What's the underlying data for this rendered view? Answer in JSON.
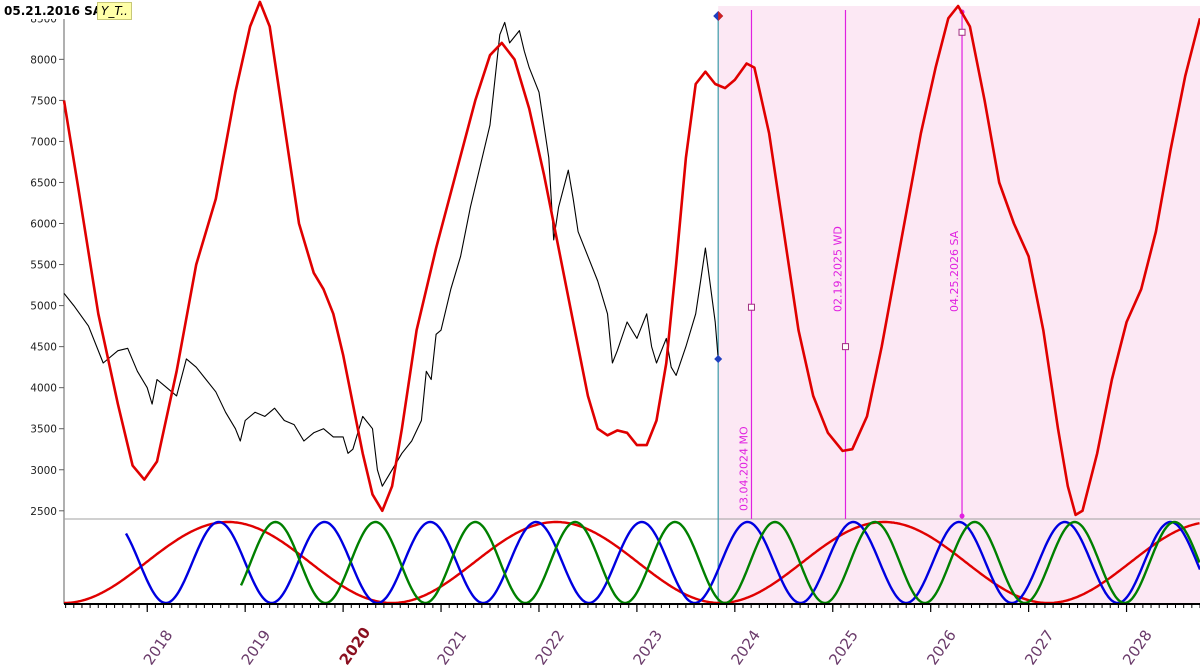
{
  "header": {
    "date_label": "05.21.2016 SA",
    "tag_label": "Y_T.."
  },
  "colors": {
    "price": "#000000",
    "composite_cycle": "#e00000",
    "cycle_red": "#e00000",
    "cycle_blue": "#0000e0",
    "cycle_green": "#008000",
    "projection_bg": "#fce8f4",
    "marker": "#e020e0",
    "now_line": "#3a9aa8"
  },
  "chart_data": {
    "type": "line",
    "x_unit": "year",
    "xlim": [
      2017.15,
      2028.75
    ],
    "ylim": [
      2400,
      8650
    ],
    "y_ticks": [
      "2500",
      "3000",
      "3500",
      "4000",
      "4500",
      "5000",
      "5500",
      "6000",
      "6500",
      "7000",
      "7500",
      "8000",
      "8500"
    ],
    "x_ticks": [
      "2018",
      "2019",
      "2020",
      "2021",
      "2022",
      "2023",
      "2024",
      "2025",
      "2026",
      "2027",
      "2028"
    ],
    "x_tick_highlight": "2020",
    "now_x": 2023.83,
    "series": [
      {
        "role": "price",
        "color": "#000000",
        "points": [
          [
            2017.15,
            5150
          ],
          [
            2017.25,
            5000
          ],
          [
            2017.4,
            4750
          ],
          [
            2017.55,
            4300
          ],
          [
            2017.7,
            4450
          ],
          [
            2017.8,
            4480
          ],
          [
            2017.9,
            4200
          ],
          [
            2018.0,
            4000
          ],
          [
            2018.05,
            3800
          ],
          [
            2018.1,
            4100
          ],
          [
            2018.2,
            4000
          ],
          [
            2018.3,
            3900
          ],
          [
            2018.4,
            4350
          ],
          [
            2018.5,
            4250
          ],
          [
            2018.6,
            4100
          ],
          [
            2018.7,
            3950
          ],
          [
            2018.8,
            3700
          ],
          [
            2018.9,
            3500
          ],
          [
            2018.95,
            3350
          ],
          [
            2019.0,
            3600
          ],
          [
            2019.1,
            3700
          ],
          [
            2019.2,
            3650
          ],
          [
            2019.3,
            3750
          ],
          [
            2019.4,
            3600
          ],
          [
            2019.5,
            3550
          ],
          [
            2019.6,
            3350
          ],
          [
            2019.7,
            3450
          ],
          [
            2019.8,
            3500
          ],
          [
            2019.9,
            3400
          ],
          [
            2020.0,
            3400
          ],
          [
            2020.05,
            3200
          ],
          [
            2020.1,
            3250
          ],
          [
            2020.2,
            3650
          ],
          [
            2020.3,
            3500
          ],
          [
            2020.35,
            3000
          ],
          [
            2020.4,
            2800
          ],
          [
            2020.5,
            3000
          ],
          [
            2020.6,
            3200
          ],
          [
            2020.7,
            3350
          ],
          [
            2020.8,
            3600
          ],
          [
            2020.85,
            4200
          ],
          [
            2020.9,
            4100
          ],
          [
            2020.95,
            4650
          ],
          [
            2021.0,
            4700
          ],
          [
            2021.1,
            5200
          ],
          [
            2021.2,
            5600
          ],
          [
            2021.3,
            6200
          ],
          [
            2021.4,
            6700
          ],
          [
            2021.5,
            7200
          ],
          [
            2021.55,
            7750
          ],
          [
            2021.6,
            8300
          ],
          [
            2021.65,
            8450
          ],
          [
            2021.7,
            8200
          ],
          [
            2021.8,
            8350
          ],
          [
            2021.85,
            8100
          ],
          [
            2021.9,
            7900
          ],
          [
            2022.0,
            7600
          ],
          [
            2022.05,
            7200
          ],
          [
            2022.1,
            6800
          ],
          [
            2022.15,
            5800
          ],
          [
            2022.2,
            6200
          ],
          [
            2022.3,
            6650
          ],
          [
            2022.35,
            6300
          ],
          [
            2022.4,
            5900
          ],
          [
            2022.5,
            5600
          ],
          [
            2022.6,
            5300
          ],
          [
            2022.7,
            4900
          ],
          [
            2022.75,
            4300
          ],
          [
            2022.8,
            4450
          ],
          [
            2022.9,
            4800
          ],
          [
            2023.0,
            4600
          ],
          [
            2023.1,
            4900
          ],
          [
            2023.15,
            4500
          ],
          [
            2023.2,
            4300
          ],
          [
            2023.3,
            4600
          ],
          [
            2023.35,
            4250
          ],
          [
            2023.4,
            4150
          ],
          [
            2023.5,
            4500
          ],
          [
            2023.6,
            4900
          ],
          [
            2023.65,
            5300
          ],
          [
            2023.7,
            5700
          ],
          [
            2023.75,
            5250
          ],
          [
            2023.8,
            4800
          ],
          [
            2023.83,
            4350
          ]
        ]
      },
      {
        "role": "composite_cycle",
        "color": "#e00000",
        "points": [
          [
            2017.15,
            7500
          ],
          [
            2017.3,
            6400
          ],
          [
            2017.5,
            4900
          ],
          [
            2017.7,
            3800
          ],
          [
            2017.85,
            3050
          ],
          [
            2017.97,
            2880
          ],
          [
            2018.1,
            3100
          ],
          [
            2018.3,
            4200
          ],
          [
            2018.5,
            5500
          ],
          [
            2018.7,
            6300
          ],
          [
            2018.9,
            7600
          ],
          [
            2019.05,
            8400
          ],
          [
            2019.15,
            8700
          ],
          [
            2019.25,
            8400
          ],
          [
            2019.4,
            7200
          ],
          [
            2019.55,
            6000
          ],
          [
            2019.7,
            5400
          ],
          [
            2019.8,
            5200
          ],
          [
            2019.9,
            4900
          ],
          [
            2020.0,
            4400
          ],
          [
            2020.1,
            3800
          ],
          [
            2020.2,
            3200
          ],
          [
            2020.3,
            2700
          ],
          [
            2020.4,
            2500
          ],
          [
            2020.5,
            2800
          ],
          [
            2020.6,
            3500
          ],
          [
            2020.75,
            4700
          ],
          [
            2020.95,
            5700
          ],
          [
            2021.15,
            6600
          ],
          [
            2021.35,
            7500
          ],
          [
            2021.5,
            8050
          ],
          [
            2021.62,
            8200
          ],
          [
            2021.75,
            8000
          ],
          [
            2021.9,
            7400
          ],
          [
            2022.05,
            6600
          ],
          [
            2022.2,
            5700
          ],
          [
            2022.35,
            4800
          ],
          [
            2022.5,
            3900
          ],
          [
            2022.6,
            3500
          ],
          [
            2022.7,
            3420
          ],
          [
            2022.8,
            3480
          ],
          [
            2022.9,
            3450
          ],
          [
            2023.0,
            3300
          ],
          [
            2023.1,
            3300
          ],
          [
            2023.2,
            3600
          ],
          [
            2023.3,
            4300
          ],
          [
            2023.4,
            5500
          ],
          [
            2023.5,
            6800
          ],
          [
            2023.6,
            7700
          ],
          [
            2023.7,
            7850
          ],
          [
            2023.8,
            7700
          ],
          [
            2023.9,
            7650
          ],
          [
            2024.0,
            7750
          ],
          [
            2024.12,
            7950
          ],
          [
            2024.2,
            7900
          ],
          [
            2024.35,
            7100
          ],
          [
            2024.5,
            5900
          ],
          [
            2024.65,
            4700
          ],
          [
            2024.8,
            3900
          ],
          [
            2024.95,
            3450
          ],
          [
            2025.1,
            3230
          ],
          [
            2025.2,
            3250
          ],
          [
            2025.35,
            3650
          ],
          [
            2025.5,
            4500
          ],
          [
            2025.7,
            5800
          ],
          [
            2025.9,
            7100
          ],
          [
            2026.05,
            7900
          ],
          [
            2026.18,
            8500
          ],
          [
            2026.28,
            8650
          ],
          [
            2026.4,
            8400
          ],
          [
            2026.55,
            7500
          ],
          [
            2026.7,
            6500
          ],
          [
            2026.85,
            6000
          ],
          [
            2027.0,
            5600
          ],
          [
            2027.15,
            4700
          ],
          [
            2027.3,
            3500
          ],
          [
            2027.4,
            2800
          ],
          [
            2027.48,
            2450
          ],
          [
            2027.55,
            2500
          ],
          [
            2027.7,
            3200
          ],
          [
            2027.85,
            4100
          ],
          [
            2028.0,
            4800
          ],
          [
            2028.15,
            5200
          ],
          [
            2028.3,
            5900
          ],
          [
            2028.45,
            6900
          ],
          [
            2028.6,
            7800
          ],
          [
            2028.75,
            8500
          ]
        ]
      }
    ],
    "projection_markers": [
      {
        "label": "03.04.2024 MO",
        "x": 2024.17,
        "y": 4980
      },
      {
        "label": "02.19.2025 WD",
        "x": 2025.13,
        "y": 4500
      },
      {
        "label": "04.25.2026 SA",
        "x": 2026.32,
        "y": 8330
      }
    ],
    "cycle_components": [
      {
        "color": "#e00000",
        "period": 3.35,
        "trough": 2020.5,
        "start": 2017.15
      },
      {
        "color": "#0000e0",
        "period": 1.08,
        "trough": 2020.35,
        "start": 2017.78
      },
      {
        "color": "#008000",
        "period": 1.02,
        "trough": 2019.82,
        "start": 2018.95
      }
    ]
  }
}
